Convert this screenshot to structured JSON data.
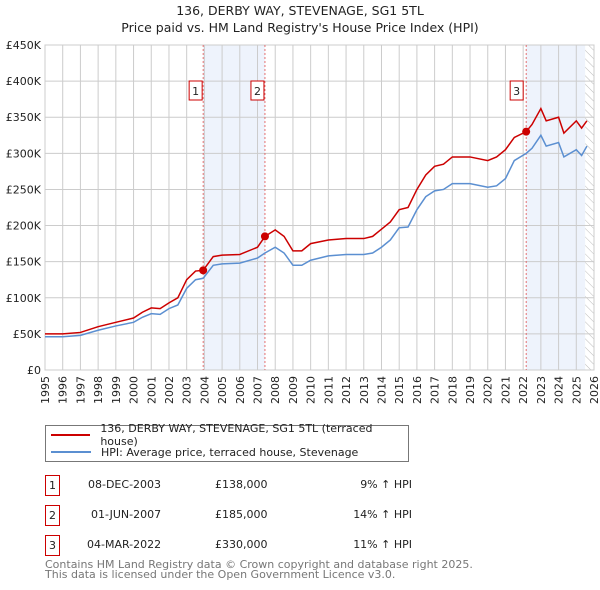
{
  "chart_data": {
    "type": "line",
    "title": "136, DERBY WAY, STEVENAGE, SG1 5TL",
    "subtitle": "Price paid vs. HM Land Registry's House Price Index (HPI)",
    "xlim": [
      1995,
      2026
    ],
    "ylim": [
      0,
      450000
    ],
    "y_ticks": [
      0,
      50000,
      100000,
      150000,
      200000,
      250000,
      300000,
      350000,
      400000,
      450000
    ],
    "y_tick_labels": [
      "£0",
      "£50K",
      "£100K",
      "£150K",
      "£200K",
      "£250K",
      "£300K",
      "£350K",
      "£400K",
      "£450K"
    ],
    "x_ticks": [
      1995,
      1996,
      1997,
      1998,
      1999,
      2000,
      2001,
      2002,
      2003,
      2004,
      2005,
      2006,
      2007,
      2008,
      2009,
      2010,
      2011,
      2012,
      2013,
      2014,
      2015,
      2016,
      2017,
      2018,
      2019,
      2020,
      2021,
      2022,
      2023,
      2024,
      2025,
      2026
    ],
    "grid": true,
    "x": [
      1995,
      1996,
      1997,
      1998,
      1999,
      2000,
      2000.5,
      2001,
      2001.5,
      2002,
      2002.5,
      2003,
      2003.5,
      2003.93,
      2004.5,
      2005,
      2006,
      2007,
      2007.42,
      2008,
      2008.5,
      2009,
      2009.5,
      2010,
      2011,
      2012,
      2013,
      2013.5,
      2014,
      2014.5,
      2015,
      2015.5,
      2016,
      2016.5,
      2017,
      2017.5,
      2018,
      2019,
      2020,
      2020.5,
      2021,
      2021.5,
      2022.17,
      2022.5,
      2023,
      2023.3,
      2024,
      2024.3,
      2025,
      2025.3,
      2025.6
    ],
    "series": [
      {
        "name": "136, DERBY WAY, STEVENAGE, SG1 5TL (terraced house)",
        "color": "#cc0000",
        "values": [
          50,
          50,
          52,
          60,
          66,
          72,
          80,
          86,
          85,
          93,
          100,
          125,
          137,
          138,
          157,
          159,
          160,
          170,
          185,
          194,
          185,
          165,
          165,
          175,
          180,
          182,
          182,
          185,
          195,
          205,
          222,
          225,
          250,
          270,
          282,
          285,
          295,
          295,
          290,
          295,
          305,
          322,
          330,
          340,
          362,
          345,
          350,
          328,
          345,
          335,
          345
        ],
        "unit": "thousand GBP"
      },
      {
        "name": "HPI: Average price, terraced house, Stevenage",
        "color": "#5b8fd1",
        "values": [
          46,
          46,
          48,
          55,
          61,
          66,
          73,
          78,
          77,
          85,
          90,
          113,
          125,
          127,
          145,
          147,
          148,
          155,
          162,
          170,
          162,
          145,
          145,
          152,
          158,
          160,
          160,
          162,
          170,
          180,
          197,
          198,
          222,
          240,
          248,
          250,
          258,
          258,
          253,
          255,
          265,
          290,
          300,
          307,
          325,
          310,
          315,
          295,
          305,
          297,
          310
        ],
        "unit": "thousand GBP"
      }
    ],
    "sales": [
      {
        "label": "1",
        "x": 2003.93,
        "value": 138000,
        "date": "08-DEC-2003",
        "price": "£138,000",
        "hpi": "9% ↑ HPI"
      },
      {
        "label": "2",
        "x": 2007.42,
        "value": 185000,
        "date": "01-JUN-2007",
        "price": "£185,000",
        "hpi": "14% ↑ HPI"
      },
      {
        "label": "3",
        "x": 2022.17,
        "value": 330000,
        "date": "04-MAR-2022",
        "price": "£330,000",
        "hpi": "11% ↑ HPI"
      }
    ],
    "shaded_ranges": [
      [
        2003.93,
        2007.42
      ],
      [
        2022.17,
        2025.5
      ]
    ],
    "hatched_from": 2025.5,
    "legend_placement": "below"
  },
  "footer": {
    "line1": "Contains HM Land Registry data © Crown copyright and database right 2025.",
    "line2": "This data is licensed under the Open Government Licence v3.0."
  }
}
